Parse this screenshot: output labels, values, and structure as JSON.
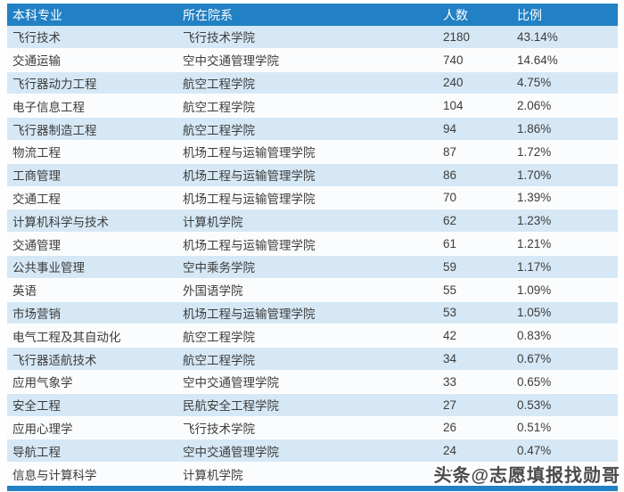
{
  "table": {
    "columns": [
      "本科专业",
      "所在院系",
      "人数",
      "比例"
    ],
    "rows": [
      {
        "major": "飞行技术",
        "college": "飞行技术学院",
        "count": "2180",
        "percent": "43.14%"
      },
      {
        "major": "交通运输",
        "college": "空中交通管理学院",
        "count": "740",
        "percent": "14.64%"
      },
      {
        "major": "飞行器动力工程",
        "college": "航空工程学院",
        "count": "240",
        "percent": "4.75%"
      },
      {
        "major": "电子信息工程",
        "college": "航空工程学院",
        "count": "104",
        "percent": "2.06%"
      },
      {
        "major": "飞行器制造工程",
        "college": "航空工程学院",
        "count": "94",
        "percent": "1.86%"
      },
      {
        "major": "物流工程",
        "college": "机场工程与运输管理学院",
        "count": "87",
        "percent": "1.72%"
      },
      {
        "major": "工商管理",
        "college": "机场工程与运输管理学院",
        "count": "86",
        "percent": "1.70%"
      },
      {
        "major": "交通工程",
        "college": "机场工程与运输管理学院",
        "count": "70",
        "percent": "1.39%"
      },
      {
        "major": "计算机科学与技术",
        "college": "计算机学院",
        "count": "62",
        "percent": "1.23%"
      },
      {
        "major": "交通管理",
        "college": "机场工程与运输管理学院",
        "count": "61",
        "percent": "1.21%"
      },
      {
        "major": "公共事业管理",
        "college": "空中乘务学院",
        "count": "59",
        "percent": "1.17%"
      },
      {
        "major": "英语",
        "college": "外国语学院",
        "count": "55",
        "percent": "1.09%"
      },
      {
        "major": "市场营销",
        "college": "机场工程与运输管理学院",
        "count": "53",
        "percent": "1.05%"
      },
      {
        "major": "电气工程及其自动化",
        "college": "航空工程学院",
        "count": "42",
        "percent": "0.83%"
      },
      {
        "major": "飞行器适航技术",
        "college": "航空工程学院",
        "count": "34",
        "percent": "0.67%"
      },
      {
        "major": "应用气象学",
        "college": "空中交通管理学院",
        "count": "33",
        "percent": "0.65%"
      },
      {
        "major": "安全工程",
        "college": "民航安全工程学院",
        "count": "27",
        "percent": "0.53%"
      },
      {
        "major": "应用心理学",
        "college": "飞行技术学院",
        "count": "26",
        "percent": "0.51%"
      },
      {
        "major": "导航工程",
        "college": "空中交通管理学院",
        "count": "24",
        "percent": "0.47%"
      },
      {
        "major": "信息与计算科学",
        "college": "计算机学院",
        "count": "22",
        "percent": "0.44%"
      }
    ]
  },
  "watermark": "头条@志愿填报找勋哥",
  "colors": {
    "header_bg": "#2181C4",
    "header_text": "#FFFFFF",
    "row_alt_bg": "#D6E8F5",
    "row_bg": "#FBFCFD",
    "body_text": "#3C3C3C",
    "footer_bar": "#2181C4"
  }
}
